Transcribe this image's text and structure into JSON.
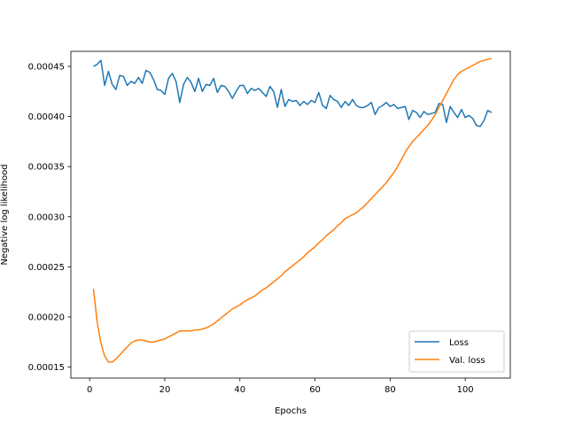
{
  "chart_data": {
    "type": "line",
    "title": "",
    "xlabel": "Epochs",
    "ylabel": "Negative log likelihood",
    "xlim": [
      -5,
      112
    ],
    "ylim": [
      0.000139,
      0.000465
    ],
    "xticks": [
      0,
      20,
      40,
      60,
      80,
      100
    ],
    "xtick_labels": [
      "0",
      "20",
      "40",
      "60",
      "80",
      "100"
    ],
    "yticks": [
      0.00015,
      0.0002,
      0.00025,
      0.0003,
      0.00035,
      0.0004,
      0.00045
    ],
    "ytick_labels": [
      "0.00015",
      "0.00020",
      "0.00025",
      "0.00030",
      "0.00035",
      "0.00040",
      "0.00045"
    ],
    "grid": false,
    "legend_position": "bottom-right",
    "series": [
      {
        "name": "Loss",
        "color": "#1f77b4",
        "x": [
          1,
          2,
          3,
          4,
          5,
          6,
          7,
          8,
          9,
          10,
          11,
          12,
          13,
          14,
          15,
          16,
          17,
          18,
          19,
          20,
          21,
          22,
          23,
          24,
          25,
          26,
          27,
          28,
          29,
          30,
          31,
          32,
          33,
          34,
          35,
          36,
          37,
          38,
          39,
          40,
          41,
          42,
          43,
          44,
          45,
          46,
          47,
          48,
          49,
          50,
          51,
          52,
          53,
          54,
          55,
          56,
          57,
          58,
          59,
          60,
          61,
          62,
          63,
          64,
          65,
          66,
          67,
          68,
          69,
          70,
          71,
          72,
          73,
          74,
          75,
          76,
          77,
          78,
          79,
          80,
          81,
          82,
          83,
          84,
          85,
          86,
          87,
          88,
          89,
          90,
          91,
          92,
          93,
          94,
          95,
          96,
          97,
          98,
          99,
          100,
          101,
          102,
          103,
          104,
          105,
          106,
          107
        ],
        "values": [
          0.00045,
          0.000452,
          0.000456,
          0.000431,
          0.000445,
          0.000432,
          0.000427,
          0.000441,
          0.00044,
          0.000431,
          0.000435,
          0.000433,
          0.000439,
          0.000433,
          0.000446,
          0.000444,
          0.000437,
          0.000427,
          0.000426,
          0.000422,
          0.000438,
          0.000443,
          0.000435,
          0.000414,
          0.000432,
          0.000439,
          0.000434,
          0.000425,
          0.000438,
          0.000425,
          0.000432,
          0.000431,
          0.000438,
          0.000424,
          0.000431,
          0.00043,
          0.000425,
          0.000418,
          0.000425,
          0.000431,
          0.000431,
          0.000423,
          0.000428,
          0.000426,
          0.000428,
          0.000424,
          0.00042,
          0.00043,
          0.000425,
          0.000409,
          0.000427,
          0.00041,
          0.000417,
          0.000415,
          0.000416,
          0.000411,
          0.000415,
          0.000412,
          0.000416,
          0.000414,
          0.000424,
          0.000411,
          0.000408,
          0.000421,
          0.000417,
          0.000415,
          0.000409,
          0.000415,
          0.000411,
          0.000417,
          0.000411,
          0.000409,
          0.000409,
          0.000411,
          0.000414,
          0.000402,
          0.000409,
          0.000411,
          0.000414,
          0.00041,
          0.000412,
          0.000408,
          0.000409,
          0.00041,
          0.000397,
          0.000406,
          0.000404,
          0.000399,
          0.000405,
          0.000402,
          0.000403,
          0.000404,
          0.000413,
          0.000412,
          0.000394,
          0.00041,
          0.000404,
          0.000399,
          0.000407,
          0.000399,
          0.000401,
          0.000398,
          0.000391,
          0.00039,
          0.000396,
          0.000406,
          0.000404
        ]
      },
      {
        "name": "Val. loss",
        "color": "#ff7f0e",
        "x": [
          1,
          2,
          3,
          4,
          5,
          6,
          7,
          8,
          9,
          10,
          11,
          12,
          13,
          14,
          15,
          16,
          17,
          18,
          19,
          20,
          21,
          22,
          23,
          24,
          25,
          26,
          27,
          28,
          29,
          30,
          31,
          32,
          33,
          34,
          35,
          36,
          37,
          38,
          39,
          40,
          41,
          42,
          43,
          44,
          45,
          46,
          47,
          48,
          49,
          50,
          51,
          52,
          53,
          54,
          55,
          56,
          57,
          58,
          59,
          60,
          61,
          62,
          63,
          64,
          65,
          66,
          67,
          68,
          69,
          70,
          71,
          72,
          73,
          74,
          75,
          76,
          77,
          78,
          79,
          80,
          81,
          82,
          83,
          84,
          85,
          86,
          87,
          88,
          89,
          90,
          91,
          92,
          93,
          94,
          95,
          96,
          97,
          98,
          99,
          100,
          101,
          102,
          103,
          104,
          105,
          106,
          107
        ],
        "values": [
          0.000228,
          0.000195,
          0.000174,
          0.000161,
          0.000155,
          0.000155,
          0.000158,
          0.000162,
          0.000166,
          0.00017,
          0.000174,
          0.000176,
          0.000177,
          0.000177,
          0.000176,
          0.000175,
          0.000175,
          0.000176,
          0.000177,
          0.000178,
          0.00018,
          0.000182,
          0.000184,
          0.000186,
          0.000186,
          0.000186,
          0.000186,
          0.000187,
          0.000187,
          0.000188,
          0.000189,
          0.000191,
          0.000193,
          0.000196,
          0.000199,
          0.000202,
          0.000205,
          0.000208,
          0.00021,
          0.000212,
          0.000215,
          0.000217,
          0.000219,
          0.000221,
          0.000224,
          0.000227,
          0.000229,
          0.000232,
          0.000235,
          0.000238,
          0.000241,
          0.000245,
          0.000248,
          0.000251,
          0.000254,
          0.000257,
          0.00026,
          0.000264,
          0.000267,
          0.00027,
          0.000274,
          0.000277,
          0.000281,
          0.000284,
          0.000287,
          0.000291,
          0.000294,
          0.000298,
          0.0003,
          0.000302,
          0.000304,
          0.000307,
          0.00031,
          0.000314,
          0.000318,
          0.000322,
          0.000326,
          0.00033,
          0.000334,
          0.000339,
          0.000344,
          0.00035,
          0.000357,
          0.000364,
          0.00037,
          0.000375,
          0.000379,
          0.000383,
          0.000387,
          0.000391,
          0.000396,
          0.000402,
          0.000409,
          0.000416,
          0.000423,
          0.00043,
          0.000437,
          0.000442,
          0.000445,
          0.000447,
          0.000449,
          0.000451,
          0.000453,
          0.000455,
          0.000456,
          0.000457,
          0.000458
        ]
      }
    ]
  }
}
